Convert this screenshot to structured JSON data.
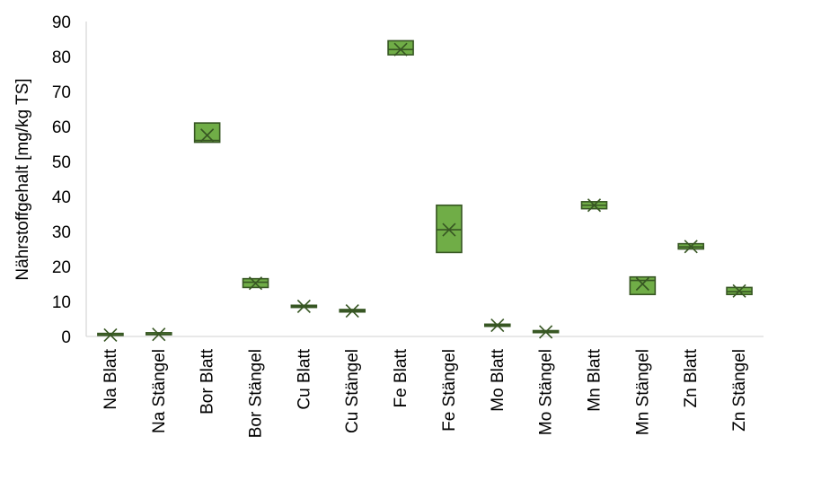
{
  "chart_data": {
    "type": "boxplot",
    "ylabel": "Nährstoffgehalt [mg/kg TS]",
    "ylim": [
      0,
      90
    ],
    "yticks": [
      "0",
      "10",
      "20",
      "30",
      "40",
      "50",
      "60",
      "70",
      "80",
      "90"
    ],
    "grid": false,
    "legend": "none",
    "colors": {
      "box_fill": "#70ad47",
      "box_stroke": "#375623",
      "axis": "#d9d9d9"
    },
    "categories": [
      "Na Blatt",
      "Na Stängel",
      "Bor Blatt",
      "Bor Stängel",
      "Cu Blatt",
      "Cu Stängel",
      "Fe Blatt",
      "Fe Stängel",
      "Mo Blatt",
      "Mo Stängel",
      "Mn Blatt",
      "Mn Stängel",
      "Zn Blatt",
      "Zn Stängel"
    ],
    "boxes": [
      {
        "q1": 0.3,
        "median": 0.4,
        "q3": 0.5,
        "mean": 0.4
      },
      {
        "q1": 0.5,
        "median": 0.6,
        "q3": 0.7,
        "mean": 0.6
      },
      {
        "q1": 55.5,
        "median": 56,
        "q3": 61,
        "mean": 57.5
      },
      {
        "q1": 14,
        "median": 15.5,
        "q3": 16.5,
        "mean": 15.2
      },
      {
        "q1": 8.3,
        "median": 8.6,
        "q3": 8.9,
        "mean": 8.6
      },
      {
        "q1": 7,
        "median": 7.4,
        "q3": 7.7,
        "mean": 7.3
      },
      {
        "q1": 80.5,
        "median": 82,
        "q3": 84.5,
        "mean": 82
      },
      {
        "q1": 24,
        "median": 30.5,
        "q3": 37.5,
        "mean": 30.5
      },
      {
        "q1": 2.9,
        "median": 3.2,
        "q3": 3.5,
        "mean": 3.2
      },
      {
        "q1": 1.1,
        "median": 1.3,
        "q3": 1.5,
        "mean": 1.3
      },
      {
        "q1": 36.5,
        "median": 37.5,
        "q3": 38.5,
        "mean": 37.5
      },
      {
        "q1": 12,
        "median": 16,
        "q3": 17,
        "mean": 15
      },
      {
        "q1": 25,
        "median": 25.6,
        "q3": 26.5,
        "mean": 25.7
      },
      {
        "q1": 12,
        "median": 12.8,
        "q3": 14,
        "mean": 13
      }
    ]
  }
}
